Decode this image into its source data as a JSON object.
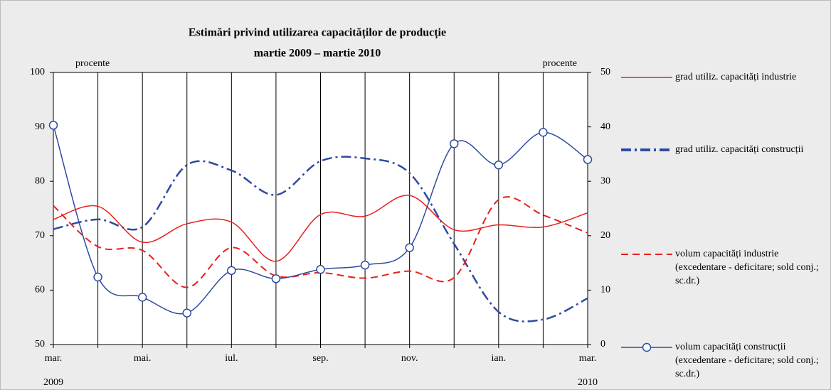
{
  "chart_data": {
    "type": "line",
    "title": "Estimări privind utilizarea capacităților de producție",
    "subtitle": "martie 2009 – martie 2010",
    "y_label": "procente",
    "y2_label": "procente",
    "categories": [
      "mar.",
      null,
      "mai.",
      null,
      "iul.",
      null,
      "sep.",
      null,
      "nov.",
      null,
      "ian.",
      null,
      "mar."
    ],
    "start_year": "2009",
    "end_year": "2010",
    "ylim": [
      50,
      100
    ],
    "yticks": [
      50,
      60,
      70,
      80,
      90,
      100
    ],
    "y2lim": [
      0,
      50
    ],
    "y2ticks": [
      0,
      10,
      20,
      30,
      40,
      50
    ],
    "series": [
      {
        "name": "grad utiliz. capacități industrie",
        "color": "#e8201c",
        "style": "solid",
        "values": [
          73.0,
          75.4,
          68.8,
          72.2,
          72.5,
          65.3,
          73.9,
          73.6,
          77.4,
          71.1,
          72.0,
          71.6,
          74.2
        ]
      },
      {
        "name": "grad utiliz. capacități construcții",
        "color": "#2e4aa0",
        "style": "dashdot",
        "values": [
          71.2,
          73.0,
          71.6,
          83.0,
          82.0,
          77.5,
          83.7,
          84.2,
          81.5,
          68.5,
          56.0,
          54.6,
          58.5
        ]
      },
      {
        "name": "volum capacități industrie (excedentare - deficitare; sold conj.; sc.dr.)",
        "color": "#e8201c",
        "style": "dashed",
        "axis": "y2",
        "values": [
          25.5,
          18.0,
          17.3,
          10.5,
          17.8,
          12.6,
          13.2,
          12.2,
          13.5,
          12.3,
          26.6,
          23.8,
          20.5
        ]
      },
      {
        "name": "volum capacități construcții (excedentare - deficitare; sold conj.; sc.dr.)",
        "color": "#2e4aa0",
        "style": "marker",
        "axis": "y2",
        "values": [
          40.3,
          12.4,
          8.7,
          5.8,
          13.6,
          12.1,
          13.8,
          14.6,
          17.8,
          36.9,
          33.0,
          39.0,
          34.0
        ]
      }
    ]
  }
}
